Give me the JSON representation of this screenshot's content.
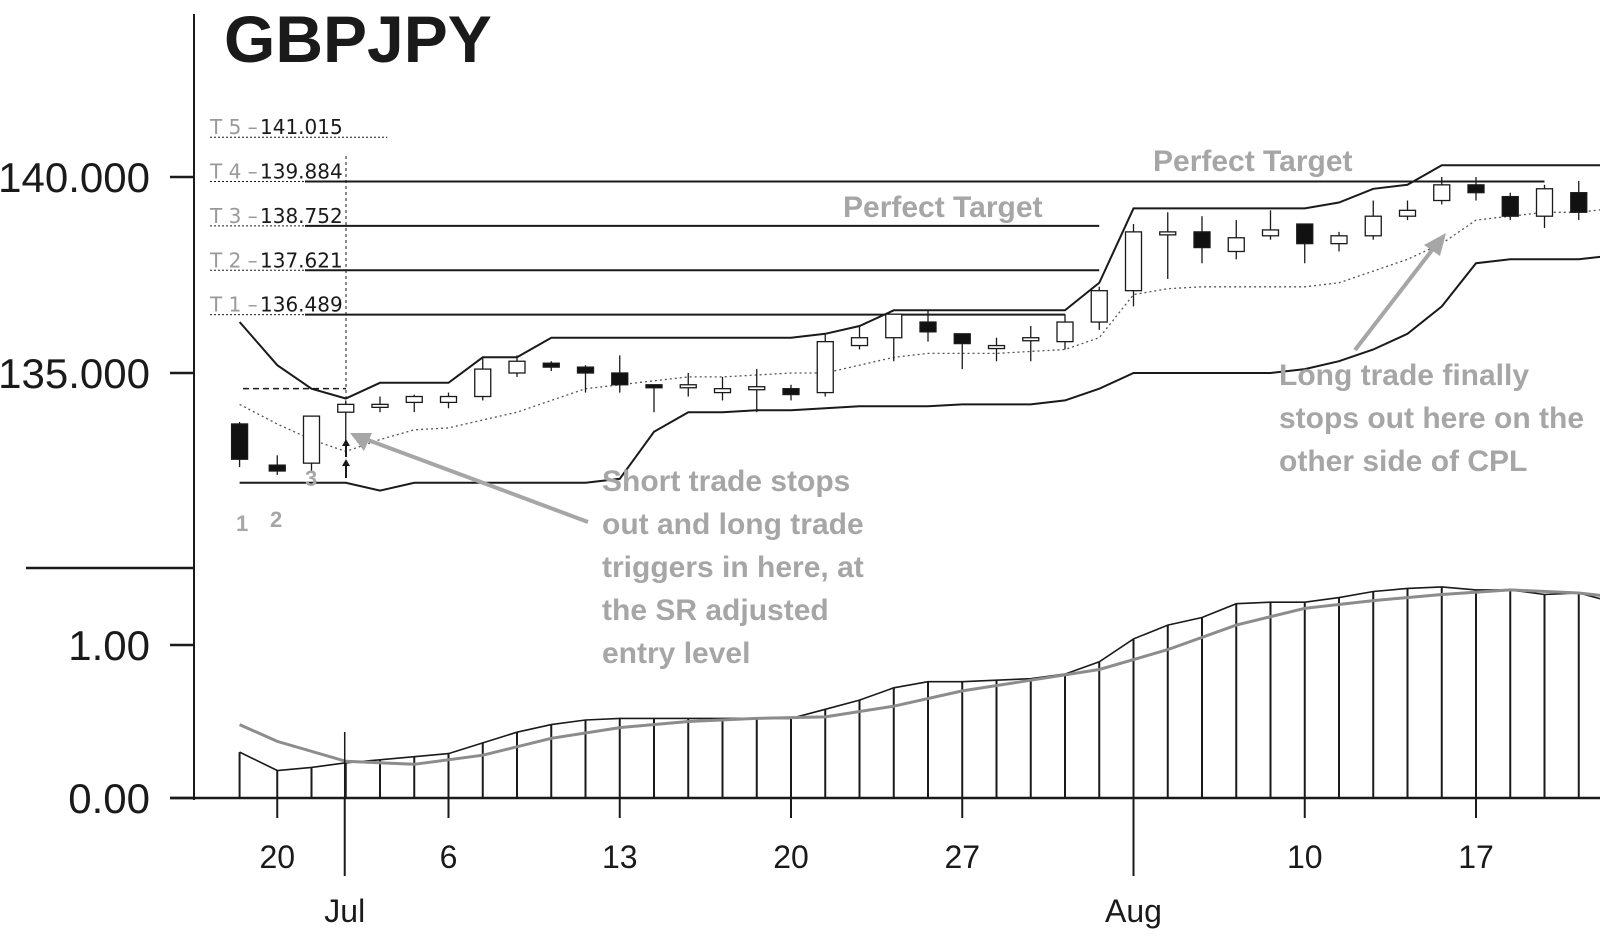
{
  "chart_data": [
    {
      "type": "candlestick",
      "title": "GBPJPY",
      "yticks": [
        {
          "value": 135.0,
          "label": "135.000"
        },
        {
          "value": 140.0,
          "label": "140.000"
        }
      ],
      "ylim": [
        130.5,
        144.4
      ],
      "target_levels": [
        {
          "prefix": "T 5 –",
          "value": 141.015,
          "label": "141.015",
          "x_start": 1
        },
        {
          "prefix": "T 4 –",
          "value": 139.884,
          "label": "139.884",
          "x_start": 1
        },
        {
          "prefix": "T 3 –",
          "value": 138.752,
          "label": "138.752",
          "x_start": 1
        },
        {
          "prefix": "T 2 –",
          "value": 137.621,
          "label": "137.621",
          "x_start": 1
        },
        {
          "prefix": "T 1 –",
          "value": 136.489,
          "label": "136.489",
          "x_start": 1
        }
      ],
      "target_lines": [
        {
          "value": 139.884,
          "x_end": 38
        },
        {
          "value": 138.752,
          "x_end": 25
        },
        {
          "value": 137.621,
          "x_end": 25
        },
        {
          "value": 136.489,
          "x_end": 24
        }
      ],
      "entry_level": 134.6,
      "candles": [
        {
          "x": -0.1,
          "open": 133.7,
          "high": 133.75,
          "low": 132.6,
          "close": 132.8
        },
        {
          "x": 1,
          "open": 132.65,
          "high": 132.9,
          "low": 132.4,
          "close": 132.5
        },
        {
          "x": 2,
          "open": 132.7,
          "high": 133.9,
          "low": 132.5,
          "close": 133.9
        },
        {
          "x": 3,
          "open": 134.0,
          "high": 134.3,
          "low": 133.1,
          "close": 134.2
        },
        {
          "x": 4,
          "open": 134.2,
          "high": 134.4,
          "low": 134.0,
          "close": 134.2
        },
        {
          "x": 5,
          "open": 134.25,
          "high": 134.45,
          "low": 134.0,
          "close": 134.4
        },
        {
          "x": 6,
          "open": 134.25,
          "high": 134.5,
          "low": 134.1,
          "close": 134.4
        },
        {
          "x": 7,
          "open": 134.4,
          "high": 135.4,
          "low": 134.3,
          "close": 135.1
        },
        {
          "x": 8,
          "open": 135.0,
          "high": 135.45,
          "low": 134.9,
          "close": 135.3
        },
        {
          "x": 9,
          "open": 135.25,
          "high": 135.3,
          "low": 135.05,
          "close": 135.15
        },
        {
          "x": 10,
          "open": 135.15,
          "high": 135.2,
          "low": 134.5,
          "close": 135.0
        },
        {
          "x": 11,
          "open": 135.0,
          "high": 135.45,
          "low": 134.5,
          "close": 134.7
        },
        {
          "x": 12,
          "open": 134.7,
          "high": 134.7,
          "low": 134.0,
          "close": 134.65
        },
        {
          "x": 13,
          "open": 134.7,
          "high": 135.0,
          "low": 134.4,
          "close": 134.7
        },
        {
          "x": 14,
          "open": 134.5,
          "high": 134.9,
          "low": 134.3,
          "close": 134.6
        },
        {
          "x": 15,
          "open": 134.6,
          "high": 135.1,
          "low": 134.0,
          "close": 134.65
        },
        {
          "x": 16,
          "open": 134.6,
          "high": 134.7,
          "low": 134.3,
          "close": 134.45
        },
        {
          "x": 17,
          "open": 134.5,
          "high": 136.0,
          "low": 134.4,
          "close": 135.8
        },
        {
          "x": 18,
          "open": 135.7,
          "high": 136.2,
          "low": 135.6,
          "close": 135.9
        },
        {
          "x": 19,
          "open": 135.9,
          "high": 136.5,
          "low": 135.3,
          "close": 136.5
        },
        {
          "x": 20,
          "open": 136.3,
          "high": 136.6,
          "low": 135.8,
          "close": 136.05
        },
        {
          "x": 21,
          "open": 136.0,
          "high": 136.0,
          "low": 135.1,
          "close": 135.75
        },
        {
          "x": 22,
          "open": 135.7,
          "high": 135.9,
          "low": 135.3,
          "close": 135.7
        },
        {
          "x": 23,
          "open": 135.9,
          "high": 136.2,
          "low": 135.3,
          "close": 135.9
        },
        {
          "x": 24,
          "open": 135.8,
          "high": 136.5,
          "low": 135.6,
          "close": 136.3
        },
        {
          "x": 25,
          "open": 136.3,
          "high": 137.2,
          "low": 136.1,
          "close": 137.1
        },
        {
          "x": 26,
          "open": 137.1,
          "high": 138.8,
          "low": 136.7,
          "close": 138.6
        },
        {
          "x": 27,
          "open": 138.6,
          "high": 139.1,
          "low": 137.4,
          "close": 138.6
        },
        {
          "x": 28,
          "open": 138.6,
          "high": 139.0,
          "low": 137.8,
          "close": 138.2
        },
        {
          "x": 29,
          "open": 138.1,
          "high": 138.9,
          "low": 137.9,
          "close": 138.45
        },
        {
          "x": 30,
          "open": 138.5,
          "high": 139.15,
          "low": 138.4,
          "close": 138.65
        },
        {
          "x": 31,
          "open": 138.8,
          "high": 138.8,
          "low": 137.8,
          "close": 138.3
        },
        {
          "x": 32,
          "open": 138.3,
          "high": 138.6,
          "low": 138.1,
          "close": 138.5
        },
        {
          "x": 33,
          "open": 138.5,
          "high": 139.4,
          "low": 138.4,
          "close": 139.0
        },
        {
          "x": 34,
          "open": 139.0,
          "high": 139.4,
          "low": 138.9,
          "close": 139.15
        },
        {
          "x": 35,
          "open": 139.4,
          "high": 140.0,
          "low": 139.3,
          "close": 139.8
        },
        {
          "x": 36,
          "open": 139.8,
          "high": 140.0,
          "low": 139.4,
          "close": 139.6
        },
        {
          "x": 37,
          "open": 139.5,
          "high": 139.6,
          "low": 138.9,
          "close": 139.0
        },
        {
          "x": 38,
          "open": 139.0,
          "high": 139.8,
          "low": 138.7,
          "close": 139.7
        },
        {
          "x": 39,
          "open": 139.6,
          "high": 139.9,
          "low": 138.9,
          "close": 139.1
        },
        {
          "x": 40,
          "open": 139.2,
          "high": 139.9,
          "low": 138.5,
          "close": 139.8
        },
        {
          "x": 41,
          "open": 139.8,
          "high": 139.9,
          "low": 138.4,
          "close": 138.6
        }
      ],
      "upper_band": {
        "x": [
          -0.1,
          1,
          2,
          3,
          4,
          5,
          6,
          7,
          8,
          9,
          10,
          11,
          12,
          13,
          14,
          15,
          16,
          17,
          18,
          19,
          20,
          21,
          22,
          23,
          24,
          25,
          26,
          27,
          28,
          29,
          30,
          31,
          32,
          33,
          34,
          35,
          36,
          37,
          38,
          39,
          40,
          41,
          41.7
        ],
        "y": [
          136.3,
          135.2,
          134.6,
          134.35,
          134.75,
          134.75,
          134.75,
          135.4,
          135.4,
          135.9,
          135.9,
          135.9,
          135.9,
          135.9,
          135.9,
          135.9,
          135.9,
          136.0,
          136.2,
          136.6,
          136.6,
          136.6,
          136.6,
          136.6,
          136.6,
          137.3,
          139.2,
          139.2,
          139.2,
          139.2,
          139.2,
          139.2,
          139.35,
          139.7,
          139.8,
          140.3,
          140.3,
          140.3,
          140.3,
          140.3,
          140.3,
          140.3,
          140.3
        ]
      },
      "lower_band": {
        "x": [
          -0.1,
          1,
          2,
          3,
          4,
          5,
          6,
          7,
          8,
          9,
          10,
          11,
          12,
          13,
          14,
          15,
          16,
          17,
          18,
          19,
          20,
          21,
          22,
          23,
          24,
          25,
          26,
          27,
          28,
          29,
          30,
          31,
          32,
          33,
          34,
          35,
          36,
          37,
          38,
          39,
          40,
          41,
          41.7
        ],
        "y": [
          132.2,
          132.2,
          132.2,
          132.2,
          132.0,
          132.2,
          132.2,
          132.2,
          132.2,
          132.2,
          132.2,
          132.3,
          133.5,
          134.0,
          134.0,
          134.05,
          134.05,
          134.1,
          134.15,
          134.15,
          134.15,
          134.2,
          134.2,
          134.2,
          134.3,
          134.6,
          135.0,
          135.0,
          135.0,
          135.0,
          135.0,
          135.1,
          135.3,
          135.6,
          136.0,
          136.7,
          137.8,
          137.9,
          137.9,
          137.9,
          138.0,
          138.2,
          138.2
        ]
      },
      "center_line": {
        "x": [
          -0.1,
          1,
          2,
          3,
          4,
          5,
          6,
          7,
          8,
          9,
          10,
          11,
          12,
          13,
          14,
          15,
          16,
          17,
          18,
          19,
          20,
          21,
          22,
          23,
          24,
          25,
          26,
          27,
          28,
          29,
          30,
          31,
          32,
          33,
          34,
          35,
          36,
          37,
          38,
          39,
          40,
          41,
          41.7
        ],
        "y": [
          134.2,
          133.7,
          133.3,
          133.0,
          133.3,
          133.55,
          133.6,
          133.8,
          134.0,
          134.3,
          134.6,
          134.7,
          134.8,
          134.9,
          134.9,
          134.95,
          135.0,
          135.0,
          135.2,
          135.4,
          135.5,
          135.5,
          135.5,
          135.55,
          135.6,
          135.9,
          137.0,
          137.15,
          137.2,
          137.2,
          137.2,
          137.2,
          137.3,
          137.6,
          137.9,
          138.3,
          138.9,
          139.0,
          139.1,
          139.1,
          139.2,
          139.2,
          139.2
        ]
      },
      "annotations": [
        "Perfect Target",
        "Perfect Target",
        "Short trade stops",
        "out and long trade",
        "triggers in here, at",
        "the SR adjusted",
        "entry level",
        "Long trade finally",
        "stops out here on the",
        "other side of CPL"
      ],
      "counts": [
        "1",
        "2",
        "3"
      ]
    },
    {
      "type": "bar",
      "yticks": [
        {
          "value": 0.0,
          "label": "0.00"
        },
        {
          "value": 1.0,
          "label": "1.00"
        }
      ],
      "ylim": [
        0.0,
        1.5
      ],
      "x": [
        -0.1,
        1,
        2,
        3,
        4,
        5,
        6,
        7,
        8,
        9,
        10,
        11,
        12,
        13,
        14,
        15,
        16,
        17,
        18,
        19,
        20,
        21,
        22,
        23,
        24,
        25,
        26,
        27,
        28,
        29,
        30,
        31,
        32,
        33,
        34,
        35,
        36,
        37,
        38,
        39,
        40,
        41,
        41.7
      ],
      "values": [
        0.3,
        0.18,
        0.2,
        0.23,
        0.25,
        0.27,
        0.29,
        0.36,
        0.43,
        0.48,
        0.51,
        0.52,
        0.52,
        0.52,
        0.52,
        0.52,
        0.52,
        0.58,
        0.64,
        0.72,
        0.76,
        0.76,
        0.77,
        0.78,
        0.81,
        0.89,
        1.04,
        1.13,
        1.18,
        1.27,
        1.28,
        1.28,
        1.31,
        1.35,
        1.37,
        1.38,
        1.36,
        1.36,
        1.33,
        1.34,
        1.28,
        1.23,
        1.21
      ],
      "smooth_line": {
        "x": [
          -0.1,
          1,
          3,
          5,
          7,
          9,
          11,
          13,
          15,
          17,
          19,
          21,
          23,
          25,
          27,
          29,
          31,
          33,
          35,
          37,
          39,
          41,
          41.7
        ],
        "y": [
          0.48,
          0.37,
          0.24,
          0.22,
          0.28,
          0.39,
          0.46,
          0.5,
          0.52,
          0.53,
          0.6,
          0.7,
          0.77,
          0.84,
          0.97,
          1.13,
          1.24,
          1.29,
          1.33,
          1.36,
          1.34,
          1.29,
          1.27
        ]
      }
    }
  ],
  "x_axis": {
    "ticks": [
      {
        "x": 1,
        "label": "20"
      },
      {
        "x": 6,
        "label": "6"
      },
      {
        "x": 11,
        "label": "13"
      },
      {
        "x": 16,
        "label": "20"
      },
      {
        "x": 21,
        "label": "27"
      },
      {
        "x": 31,
        "label": "10"
      },
      {
        "x": 36,
        "label": "17"
      }
    ],
    "months": [
      {
        "x": 2.97,
        "label": "Jul"
      },
      {
        "x": 26,
        "label": "Aug"
      }
    ]
  }
}
